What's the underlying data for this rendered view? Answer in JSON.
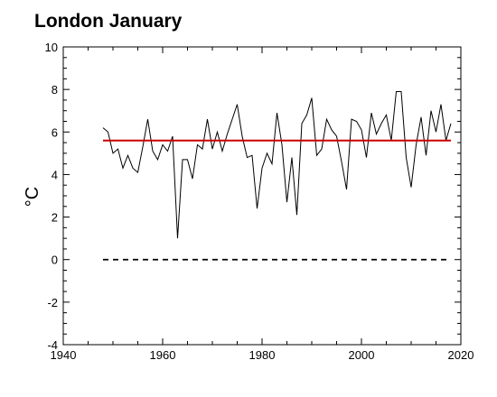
{
  "chart_data": {
    "type": "line",
    "title": "London January",
    "xlabel": "",
    "ylabel": "°C",
    "xlim": [
      1940,
      2020
    ],
    "ylim": [
      -4,
      10
    ],
    "x_ticks": [
      "1940",
      "1960",
      "1980",
      "2000",
      "2020"
    ],
    "y_ticks": [
      "-4",
      "-2",
      "0",
      "2",
      "4",
      "6",
      "8",
      "10"
    ],
    "grid": false,
    "legend": "none",
    "colors": {
      "series": "#000000",
      "mean_line": "#cc0000",
      "zero_line": "#000000"
    },
    "series": [
      {
        "x": [
          1948,
          1949,
          1950,
          1951,
          1952,
          1953,
          1954,
          1955,
          1956,
          1957,
          1958,
          1959,
          1960,
          1961,
          1962,
          1963,
          1964,
          1965,
          1966,
          1967,
          1968,
          1969,
          1970,
          1971,
          1972,
          1973,
          1974,
          1975,
          1976,
          1977,
          1978,
          1979,
          1980,
          1981,
          1982,
          1983,
          1984,
          1985,
          1986,
          1987,
          1988,
          1989,
          1990,
          1991,
          1992,
          1993,
          1994,
          1995,
          1996,
          1997,
          1998,
          1999,
          2000,
          2001,
          2002,
          2003,
          2004,
          2005,
          2006,
          2007,
          2008,
          2009,
          2010,
          2011,
          2012,
          2013,
          2014,
          2015,
          2016,
          2017,
          2018
        ],
        "values": [
          6.2,
          6.0,
          5.0,
          5.2,
          4.3,
          4.9,
          4.3,
          4.1,
          5.3,
          6.6,
          5.1,
          4.7,
          5.4,
          5.1,
          5.8,
          1.0,
          4.7,
          4.7,
          3.8,
          5.4,
          5.2,
          6.6,
          5.2,
          6.0,
          5.1,
          5.9,
          6.6,
          7.3,
          5.8,
          4.8,
          4.9,
          2.4,
          4.3,
          5.0,
          4.5,
          6.9,
          5.4,
          2.7,
          4.8,
          2.1,
          6.4,
          6.8,
          7.6,
          4.9,
          5.2,
          6.6,
          6.1,
          5.8,
          4.6,
          3.3,
          6.6,
          6.5,
          6.1,
          4.8,
          6.9,
          5.9,
          6.4,
          6.8,
          5.6,
          7.9,
          7.9,
          4.8,
          3.4,
          5.4,
          6.7,
          4.9,
          7.0,
          6.0,
          7.3,
          5.6,
          6.4
        ]
      }
    ],
    "reference_lines": [
      {
        "y": 5.6,
        "style": "solid",
        "color": "#cc0000"
      },
      {
        "y": 0,
        "style": "dashed",
        "color": "#000000"
      }
    ]
  }
}
